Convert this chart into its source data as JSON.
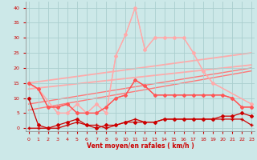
{
  "x": [
    0,
    1,
    2,
    3,
    4,
    5,
    6,
    7,
    8,
    9,
    10,
    11,
    12,
    13,
    14,
    15,
    16,
    17,
    18,
    19,
    20,
    21,
    22,
    23
  ],
  "bg_color": "#cce8e8",
  "grid_color": "#aacece",
  "xlabel": "Vent moyen/en rafales ( km/h )",
  "ylim": [
    -1,
    42
  ],
  "xlim": [
    -0.3,
    23.3
  ],
  "yticks": [
    0,
    5,
    10,
    15,
    20,
    25,
    30,
    35,
    40
  ],
  "xticks": [
    0,
    1,
    2,
    3,
    4,
    5,
    6,
    7,
    8,
    9,
    10,
    11,
    12,
    13,
    14,
    15,
    16,
    17,
    18,
    19,
    20,
    21,
    22,
    23
  ],
  "line_light_rafales": {
    "y": [
      15,
      13,
      5,
      5,
      8,
      5,
      8,
      5,
      24,
      31,
      40,
      26,
      30,
      30,
      30,
      30,
      25,
      19,
      15,
      8
    ],
    "x": [
      0,
      1,
      3,
      4,
      5,
      6,
      7,
      8,
      9,
      10,
      11,
      12,
      13,
      14,
      15,
      16,
      17,
      18,
      19,
      23
    ],
    "color": "#ffaaaa",
    "lw": 0.9,
    "marker": "D",
    "ms": 2.0
  },
  "line_light_moy": {
    "y": [
      15,
      13,
      5,
      5,
      8,
      5,
      8,
      5,
      24,
      31,
      40,
      26,
      30,
      30,
      30,
      30,
      25,
      19,
      15,
      8
    ],
    "x": [
      0,
      1,
      3,
      4,
      5,
      6,
      7,
      8,
      9,
      10,
      11,
      12,
      13,
      14,
      15,
      16,
      17,
      18,
      19,
      23
    ],
    "color": "#ffaaaa",
    "lw": 0.9,
    "marker": "+",
    "ms": 3.5
  },
  "trend_light1": {
    "x": [
      0,
      23
    ],
    "y": [
      15,
      25
    ],
    "color": "#ffaaaa",
    "lw": 1.3
  },
  "trend_light2": {
    "x": [
      0,
      23
    ],
    "y": [
      13,
      21
    ],
    "color": "#ffaaaa",
    "lw": 1.3
  },
  "trend_med1": {
    "x": [
      0,
      23
    ],
    "y": [
      8,
      20
    ],
    "color": "#ff7777",
    "lw": 1.0
  },
  "trend_med2": {
    "x": [
      0,
      23
    ],
    "y": [
      6,
      19
    ],
    "color": "#ff7777",
    "lw": 1.0
  },
  "line_med_rafales": {
    "y": [
      15,
      13,
      7,
      7,
      8,
      5,
      5,
      5,
      7,
      10,
      11,
      16,
      14,
      11,
      11,
      11,
      11,
      11,
      11,
      11,
      11,
      10,
      7,
      7
    ],
    "color": "#ff5555",
    "lw": 0.9,
    "marker": "D",
    "ms": 2.0
  },
  "line_med_moy": {
    "y": [
      15,
      13,
      7,
      7,
      8,
      5,
      5,
      5,
      7,
      10,
      11,
      16,
      14,
      11,
      11,
      11,
      11,
      11,
      11,
      11,
      11,
      10,
      7,
      7
    ],
    "color": "#ff5555",
    "lw": 0.9,
    "marker": "+",
    "ms": 3.5
  },
  "line_dark_rafales": {
    "y": [
      10,
      1,
      0,
      1,
      2,
      3,
      1,
      0,
      1,
      1,
      2,
      2,
      2,
      2,
      3,
      3,
      3,
      3,
      3,
      3,
      4,
      4,
      5,
      4
    ],
    "color": "#cc0000",
    "lw": 0.9,
    "marker": "D",
    "ms": 2.0
  },
  "line_dark_moy": {
    "y": [
      0,
      0,
      0,
      0,
      1,
      2,
      1,
      1,
      0,
      1,
      2,
      3,
      2,
      2,
      3,
      3,
      3,
      3,
      3,
      3,
      3,
      3,
      3,
      1
    ],
    "color": "#cc0000",
    "lw": 0.9,
    "marker": "+",
    "ms": 3.5
  }
}
